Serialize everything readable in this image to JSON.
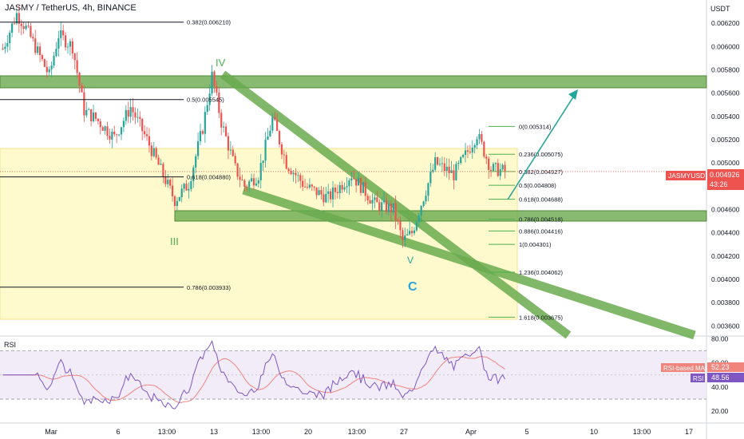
{
  "header": {
    "symbol_line": "JASMY / TetherUS, 4h, BINANCE"
  },
  "price_axis": {
    "currency": "USDT",
    "ticks": [
      "0.006200",
      "0.006000",
      "0.005800",
      "0.005600",
      "0.005400",
      "0.005200",
      "0.005000",
      "0.004800",
      "0.004600",
      "0.004400",
      "0.004200",
      "0.004000",
      "0.003800",
      "0.003600"
    ]
  },
  "price_label": {
    "symbol": "JASMYUSDT",
    "last_price": "0.004926",
    "countdown": "43:26"
  },
  "time_axis": {
    "ticks": [
      "Mar",
      "6",
      "13:00",
      "13",
      "13:00",
      "20",
      "13:00",
      "27",
      "Apr",
      "5",
      "10",
      "13:00",
      "17"
    ]
  },
  "waves": {
    "iv": "IV",
    "iii": "III",
    "v": "V",
    "c": "C"
  },
  "fib_left": [
    {
      "label": "0.382(0.006210)",
      "price": 0.00621
    },
    {
      "label": "0.5(0.005545)",
      "price": 0.005545
    },
    {
      "label": "0.618(0.004880)",
      "price": 0.00488
    },
    {
      "label": "0.786(0.003933)",
      "price": 0.003933
    }
  ],
  "fib_right": [
    {
      "label": "0(0.005314)",
      "price": 0.005314
    },
    {
      "label": "0.236(0.005075)",
      "price": 0.005075
    },
    {
      "label": "0.382(0.004927)",
      "price": 0.004927
    },
    {
      "label": "0.5(0.004808)",
      "price": 0.004808
    },
    {
      "label": "0.618(0.004688)",
      "price": 0.004688
    },
    {
      "label": "0.786(0.004518)",
      "price": 0.004518
    },
    {
      "label": "0.886(0.004416)",
      "price": 0.004416
    },
    {
      "label": "1(0.004301)",
      "price": 0.004301
    },
    {
      "label": "1.236(0.004062)",
      "price": 0.004062
    },
    {
      "label": "1.618(0.003675)",
      "price": 0.003675
    }
  ],
  "rsi_panel": {
    "title": "RSI",
    "ticks": [
      "80.00",
      "60.00",
      "40.00",
      "20.00"
    ],
    "ma_label": "RSI-based MA",
    "ma_value": "52.23",
    "rsi_label": "RSI",
    "rsi_value": "48.56"
  },
  "colors": {
    "up": "#26a69a",
    "down": "#ef5350",
    "zone_green": "#6aaa4e",
    "zone_yellow": "#fff9c4",
    "fib_green": "#4caf50",
    "rsi_line": "#7e57c2",
    "rsi_ma": "#f0857e",
    "rsi_band": "#ede7f6"
  },
  "chart_data": {
    "type": "candlestick",
    "title": "JASMY / TetherUS, 4h, BINANCE",
    "price_range": [
      0.00352,
      0.0064
    ],
    "path_keypoints": [
      {
        "i": 0,
        "p": 0.00598
      },
      {
        "i": 6,
        "p": 0.00628
      },
      {
        "i": 10,
        "p": 0.00616
      },
      {
        "i": 20,
        "p": 0.00575
      },
      {
        "i": 24,
        "p": 0.0061
      },
      {
        "i": 30,
        "p": 0.006
      },
      {
        "i": 35,
        "p": 0.00545
      },
      {
        "i": 40,
        "p": 0.00538
      },
      {
        "i": 48,
        "p": 0.00522
      },
      {
        "i": 55,
        "p": 0.00548
      },
      {
        "i": 62,
        "p": 0.0052
      },
      {
        "i": 70,
        "p": 0.00485
      },
      {
        "i": 74,
        "p": 0.00468
      },
      {
        "i": 80,
        "p": 0.00482
      },
      {
        "i": 86,
        "p": 0.0053
      },
      {
        "i": 90,
        "p": 0.00575
      },
      {
        "i": 94,
        "p": 0.00535
      },
      {
        "i": 100,
        "p": 0.00495
      },
      {
        "i": 104,
        "p": 0.0048
      },
      {
        "i": 110,
        "p": 0.0049
      },
      {
        "i": 116,
        "p": 0.00538
      },
      {
        "i": 122,
        "p": 0.005
      },
      {
        "i": 130,
        "p": 0.0048
      },
      {
        "i": 140,
        "p": 0.0047
      },
      {
        "i": 150,
        "p": 0.0049
      },
      {
        "i": 160,
        "p": 0.00465
      },
      {
        "i": 168,
        "p": 0.0046
      },
      {
        "i": 172,
        "p": 0.00433
      },
      {
        "i": 176,
        "p": 0.0044
      },
      {
        "i": 180,
        "p": 0.00465
      },
      {
        "i": 186,
        "p": 0.005
      },
      {
        "i": 194,
        "p": 0.0049
      },
      {
        "i": 200,
        "p": 0.0051
      },
      {
        "i": 204,
        "p": 0.00525
      },
      {
        "i": 210,
        "p": 0.00495
      },
      {
        "i": 216,
        "p": 0.00493
      }
    ],
    "rsi_last": 48.56,
    "rsi_ma_last": 52.23
  }
}
